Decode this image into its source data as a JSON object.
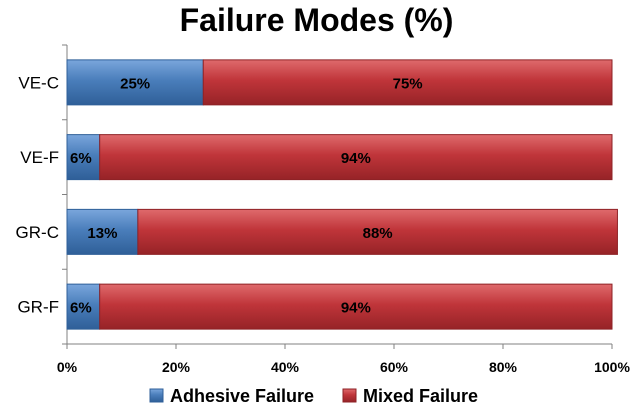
{
  "chart_data": {
    "type": "bar",
    "orientation": "horizontal",
    "stacked": true,
    "title": "Failure Modes (%)",
    "categories": [
      "VE-C",
      "VE-F",
      "GR-C",
      "GR-F"
    ],
    "series": [
      {
        "name": "Adhesive Failure",
        "values": [
          25,
          6,
          13,
          6
        ],
        "labels": [
          "25%",
          "6%",
          "13%",
          "6%"
        ],
        "color": "#4a7ebb"
      },
      {
        "name": "Mixed Failure",
        "values": [
          75,
          94,
          88,
          94
        ],
        "labels": [
          "75%",
          "94%",
          "88%",
          "94%"
        ],
        "color": "#c0353a"
      }
    ],
    "x_ticks": [
      "0%",
      "20%",
      "40%",
      "60%",
      "80%",
      "100%"
    ],
    "xlim": [
      0,
      100
    ],
    "grid": false,
    "legend_position": "bottom"
  }
}
